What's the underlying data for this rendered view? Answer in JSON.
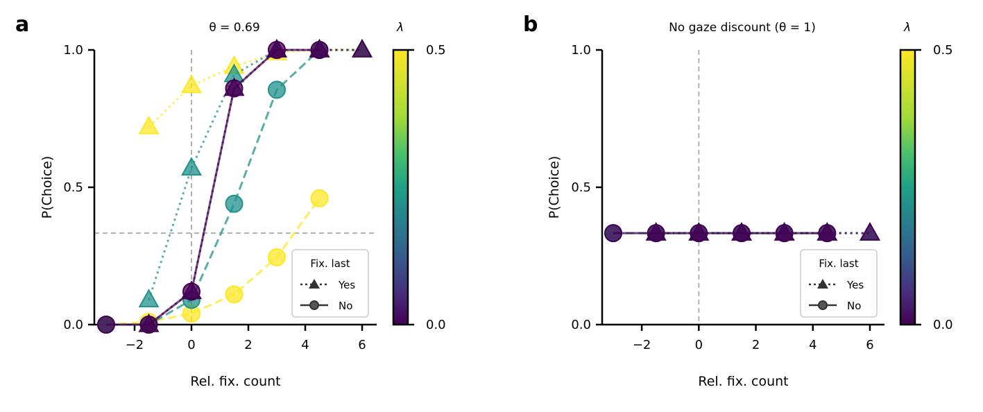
{
  "chart_data": [
    {
      "panel_label": "a",
      "type": "line",
      "title": "θ = 0.69",
      "xlabel": "Rel. fix. count",
      "ylabel": "P(Choice)",
      "xlim": [
        -3.5,
        6.5
      ],
      "ylim": [
        0,
        1
      ],
      "xticks": [
        -2,
        0,
        2,
        4,
        6
      ],
      "xtick_labels": [
        "−2",
        "0",
        "2",
        "4",
        "6"
      ],
      "yticks": [
        0,
        0.5,
        1
      ],
      "ytick_labels": [
        "0.0",
        "0.5",
        "1.0"
      ],
      "reference_lines": {
        "x": 0,
        "y": 0.333
      },
      "colorbar": {
        "label": "λ",
        "min": 0,
        "max": 0.5,
        "tick_labels": [
          "0.0",
          "0.5"
        ],
        "colormap": "viridis"
      },
      "legend": {
        "title": "Fix. last",
        "placement": "lower-right",
        "entries": [
          {
            "label": "Yes",
            "marker": "triangle",
            "linestyle": "dotted"
          },
          {
            "label": "No",
            "marker": "circle",
            "linestyle": "solid"
          }
        ]
      },
      "series": [
        {
          "lambda": 0.5,
          "fix_last": "Yes",
          "color": "#fde725",
          "x": [
            -1.5,
            0,
            1.5,
            3,
            4.5,
            6
          ],
          "y": [
            0.72,
            0.87,
            0.94,
            0.99,
            1.0,
            1.0
          ]
        },
        {
          "lambda": 0.5,
          "fix_last": "No",
          "color": "#fde725",
          "x": [
            -3,
            -1.5,
            0,
            1.5,
            3,
            4.5
          ],
          "y": [
            0.0,
            0.01,
            0.04,
            0.11,
            0.245,
            0.46
          ]
        },
        {
          "lambda": 0.25,
          "fix_last": "Yes",
          "color": "#21918c",
          "x": [
            -1.5,
            0,
            1.5,
            3,
            4.5,
            6
          ],
          "y": [
            0.09,
            0.57,
            0.91,
            1.0,
            1.0,
            1.0
          ]
        },
        {
          "lambda": 0.25,
          "fix_last": "No",
          "color": "#21918c",
          "x": [
            -3,
            -1.5,
            0,
            1.5,
            3,
            4.5
          ],
          "y": [
            0.0,
            0.0,
            0.09,
            0.44,
            0.855,
            1.0
          ]
        },
        {
          "lambda": 0.0,
          "fix_last": "Yes",
          "color": "#440154",
          "x": [
            -1.5,
            0,
            1.5,
            3,
            4.5,
            6
          ],
          "y": [
            0.0,
            0.12,
            0.86,
            1.0,
            1.0,
            1.0
          ]
        },
        {
          "lambda": 0.0,
          "fix_last": "No",
          "color": "#440154",
          "x": [
            -3,
            -1.5,
            0,
            1.5,
            3,
            4.5
          ],
          "y": [
            0.0,
            0.0,
            0.12,
            0.86,
            1.0,
            1.0
          ]
        }
      ]
    },
    {
      "panel_label": "b",
      "type": "line",
      "title": "No gaze discount (θ = 1)",
      "xlabel": "Rel. fix. count",
      "ylabel": "P(Choice)",
      "xlim": [
        -3.5,
        6.5
      ],
      "ylim": [
        0,
        1
      ],
      "xticks": [
        -2,
        0,
        2,
        4,
        6
      ],
      "xtick_labels": [
        "−2",
        "0",
        "2",
        "4",
        "6"
      ],
      "yticks": [
        0,
        0.5,
        1
      ],
      "ytick_labels": [
        "0.0",
        "0.5",
        "1.0"
      ],
      "reference_lines": {
        "x": 0
      },
      "colorbar": {
        "label": "λ",
        "min": 0,
        "max": 0.5,
        "tick_labels": [
          "0.0",
          "0.5"
        ],
        "colormap": "viridis"
      },
      "legend": {
        "title": "Fix. last",
        "placement": "lower-right",
        "entries": [
          {
            "label": "Yes",
            "marker": "triangle",
            "linestyle": "dotted"
          },
          {
            "label": "No",
            "marker": "circle",
            "linestyle": "solid"
          }
        ]
      },
      "series": [
        {
          "lambda": 0.25,
          "fix_last": "Yes",
          "color": "#21918c",
          "x": [
            -1.5,
            0,
            1.5,
            3,
            4.5,
            6
          ],
          "y": [
            0.333,
            0.333,
            0.333,
            0.333,
            0.333,
            0.333
          ]
        },
        {
          "lambda": 0.25,
          "fix_last": "No",
          "color": "#21918c",
          "x": [
            -3,
            -1.5,
            0,
            1.5,
            3,
            4.5
          ],
          "y": [
            0.333,
            0.333,
            0.333,
            0.333,
            0.333,
            0.333
          ]
        },
        {
          "lambda": 0.0,
          "fix_last": "Yes",
          "color": "#440154",
          "x": [
            -1.5,
            0,
            1.5,
            3,
            4.5,
            6
          ],
          "y": [
            0.333,
            0.333,
            0.333,
            0.333,
            0.333,
            0.333
          ]
        },
        {
          "lambda": 0.0,
          "fix_last": "No",
          "color": "#440154",
          "x": [
            -3,
            -1.5,
            0,
            1.5,
            3,
            4.5
          ],
          "y": [
            0.333,
            0.333,
            0.333,
            0.333,
            0.333,
            0.333
          ]
        }
      ]
    }
  ]
}
